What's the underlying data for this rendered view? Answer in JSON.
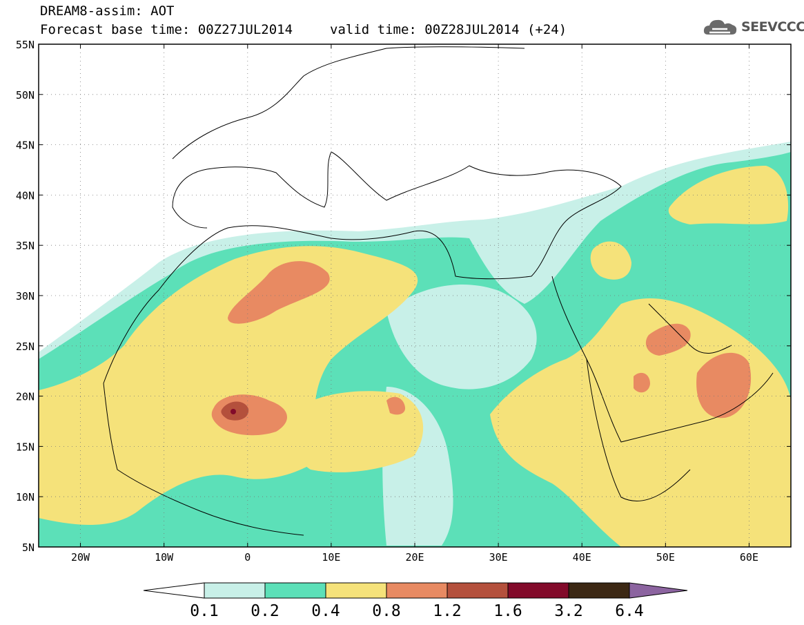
{
  "header": {
    "title": "DREAM8-assim: AOT",
    "forecast_line": "Forecast base time: 00Z27JUL2014",
    "valid_line": "valid time: 00Z28JUL2014 (+24)"
  },
  "logo": {
    "text": "SEEVCCC",
    "icon": "cloud-logo-icon"
  },
  "map": {
    "lat_ticks": [
      "55N",
      "50N",
      "45N",
      "40N",
      "35N",
      "30N",
      "25N",
      "20N",
      "15N",
      "10N",
      "5N"
    ],
    "lon_ticks": [
      "20W",
      "10W",
      "0",
      "10E",
      "20E",
      "30E",
      "40E",
      "50E",
      "60E"
    ],
    "lat_range": [
      5,
      55
    ],
    "lon_range": [
      -25,
      65
    ],
    "grid": "dotted"
  },
  "legend": {
    "labels": [
      "0.1",
      "0.2",
      "0.4",
      "0.8",
      "1.2",
      "1.6",
      "3.2",
      "6.4"
    ],
    "colors": [
      "#ffffff",
      "#c8f0e8",
      "#5ce0b8",
      "#f5e27a",
      "#e88a62",
      "#b4503c",
      "#820a2a",
      "#3c2814",
      "#8c64a0"
    ]
  }
}
